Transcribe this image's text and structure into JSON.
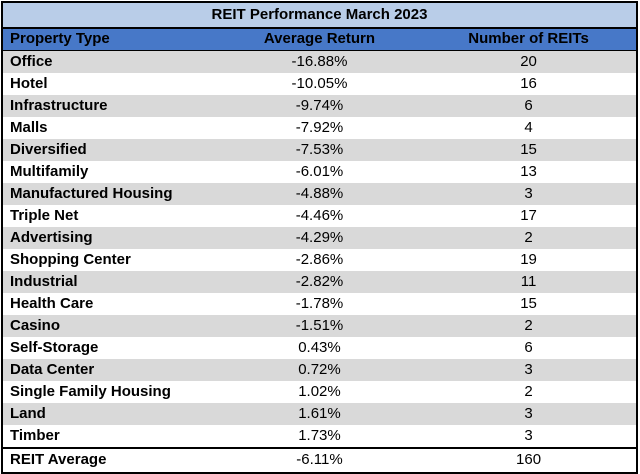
{
  "colors": {
    "title_bg": "#B9CDE8",
    "header_bg": "#4778C8",
    "row_stripe_bg": "#D9D9D9",
    "row_bg": "#FFFFFF",
    "border": "#000000",
    "text": "#000000"
  },
  "chart_data": {
    "type": "table",
    "title": "REIT Performance March 2023",
    "columns": [
      "Property Type",
      "Average Return",
      "Number of REITs"
    ],
    "rows": [
      {
        "property": "Office",
        "avg_return": "-16.88%",
        "num_reits": "20"
      },
      {
        "property": "Hotel",
        "avg_return": "-10.05%",
        "num_reits": "16"
      },
      {
        "property": "Infrastructure",
        "avg_return": "-9.74%",
        "num_reits": "6"
      },
      {
        "property": "Malls",
        "avg_return": "-7.92%",
        "num_reits": "4"
      },
      {
        "property": "Diversified",
        "avg_return": "-7.53%",
        "num_reits": "15"
      },
      {
        "property": "Multifamily",
        "avg_return": "-6.01%",
        "num_reits": "13"
      },
      {
        "property": "Manufactured Housing",
        "avg_return": "-4.88%",
        "num_reits": "3"
      },
      {
        "property": "Triple Net",
        "avg_return": "-4.46%",
        "num_reits": "17"
      },
      {
        "property": "Advertising",
        "avg_return": "-4.29%",
        "num_reits": "2"
      },
      {
        "property": "Shopping Center",
        "avg_return": "-2.86%",
        "num_reits": "19"
      },
      {
        "property": "Industrial",
        "avg_return": "-2.82%",
        "num_reits": "11"
      },
      {
        "property": "Health Care",
        "avg_return": "-1.78%",
        "num_reits": "15"
      },
      {
        "property": "Casino",
        "avg_return": "-1.51%",
        "num_reits": "2"
      },
      {
        "property": "Self-Storage",
        "avg_return": "0.43%",
        "num_reits": "6"
      },
      {
        "property": "Data Center",
        "avg_return": "0.72%",
        "num_reits": "3"
      },
      {
        "property": "Single Family Housing",
        "avg_return": "1.02%",
        "num_reits": "2"
      },
      {
        "property": "Land",
        "avg_return": "1.61%",
        "num_reits": "3"
      },
      {
        "property": "Timber",
        "avg_return": "1.73%",
        "num_reits": "3"
      }
    ],
    "footer": {
      "property": "REIT Average",
      "avg_return": "-6.11%",
      "num_reits": "160"
    },
    "layout": {
      "striped": true,
      "stripe_start": "first-data-row",
      "value_alignment": "center",
      "property_alignment": "left",
      "grid": false,
      "outer_border": true
    }
  }
}
